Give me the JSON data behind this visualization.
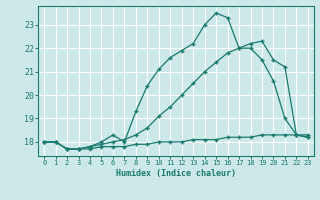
{
  "xlabel": "Humidex (Indice chaleur)",
  "ylabel": "",
  "bg_color": "#cce8e8",
  "line_color": "#1a7a6e",
  "grid_color": "#ffffff",
  "xlim": [
    -0.5,
    23.5
  ],
  "ylim": [
    17.4,
    23.8
  ],
  "yticks": [
    18,
    19,
    20,
    21,
    22,
    23
  ],
  "xticks": [
    0,
    1,
    2,
    3,
    4,
    5,
    6,
    7,
    8,
    9,
    10,
    11,
    12,
    13,
    14,
    15,
    16,
    17,
    18,
    19,
    20,
    21,
    22,
    23
  ],
  "line1_x": [
    0,
    1,
    2,
    3,
    4,
    5,
    6,
    7,
    8,
    9,
    10,
    11,
    12,
    13,
    14,
    15,
    16,
    17,
    18,
    19,
    20,
    21,
    22,
    23
  ],
  "line1_y": [
    18.0,
    18.0,
    17.7,
    17.7,
    17.7,
    17.8,
    17.8,
    17.8,
    17.9,
    17.9,
    18.0,
    18.0,
    18.0,
    18.1,
    18.1,
    18.1,
    18.2,
    18.2,
    18.2,
    18.3,
    18.3,
    18.3,
    18.3,
    18.3
  ],
  "line2_x": [
    0,
    1,
    2,
    3,
    4,
    5,
    6,
    7,
    8,
    9,
    10,
    11,
    12,
    13,
    14,
    15,
    16,
    17,
    18,
    19,
    20,
    21,
    22,
    23
  ],
  "line2_y": [
    18.0,
    18.0,
    17.7,
    17.7,
    17.8,
    18.0,
    18.3,
    18.0,
    19.3,
    20.4,
    21.1,
    21.6,
    21.9,
    22.2,
    23.0,
    23.5,
    23.3,
    22.0,
    22.0,
    21.5,
    20.6,
    19.0,
    18.3,
    18.2
  ],
  "line3_x": [
    0,
    1,
    2,
    3,
    4,
    5,
    6,
    7,
    8,
    9,
    10,
    11,
    12,
    13,
    14,
    15,
    16,
    17,
    18,
    19,
    20,
    21,
    22,
    23
  ],
  "line3_y": [
    18.0,
    18.0,
    17.7,
    17.7,
    17.8,
    17.9,
    18.0,
    18.1,
    18.3,
    18.6,
    19.1,
    19.5,
    20.0,
    20.5,
    21.0,
    21.4,
    21.8,
    22.0,
    22.2,
    22.3,
    21.5,
    21.2,
    18.3,
    18.2
  ]
}
